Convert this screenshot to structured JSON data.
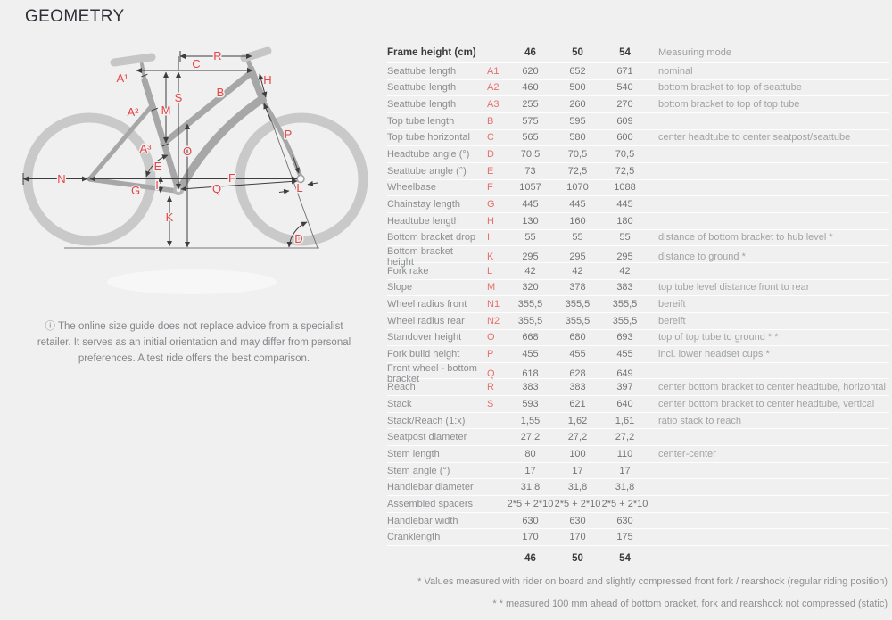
{
  "page": {
    "title": "GEOMETRY"
  },
  "colors": {
    "background": "#f0f0f0",
    "diagram_label_red": "#e64545",
    "table_letter_red": "#e4706c"
  },
  "diagram": {
    "info_icon": "ⓘ",
    "note": "The online size guide does not replace advice from a specialist retailer. It serves as an initial orientation and may differ from personal preferences. A test ride offers the best comparison.",
    "labels": {
      "a1": "A¹",
      "a2": "A²",
      "a3": "A³",
      "b": "B",
      "c": "C",
      "d": "D",
      "e": "E",
      "f": "F",
      "g": "G",
      "h": "H",
      "i": "I",
      "k": "K",
      "l": "L",
      "m": "M",
      "n": "N",
      "o": "O",
      "p": "P",
      "q": "Q",
      "r": "R",
      "s": "S"
    }
  },
  "table": {
    "header": {
      "label": "Frame height (cm)",
      "sizes": [
        "46",
        "50",
        "54"
      ],
      "measuring": "Measuring mode"
    },
    "rows": [
      {
        "label": "Seattube length",
        "letter": "A1",
        "values": [
          "620",
          "652",
          "671"
        ],
        "mode": "nominal"
      },
      {
        "label": "Seattube length",
        "letter": "A2",
        "values": [
          "460",
          "500",
          "540"
        ],
        "mode": "bottom bracket to top of seattube"
      },
      {
        "label": "Seattube length",
        "letter": "A3",
        "values": [
          "255",
          "260",
          "270"
        ],
        "mode": "bottom bracket to top of top tube"
      },
      {
        "label": "Top tube length",
        "letter": "B",
        "values": [
          "575",
          "595",
          "609"
        ],
        "mode": ""
      },
      {
        "label": "Top tube horizontal",
        "letter": "C",
        "values": [
          "565",
          "580",
          "600"
        ],
        "mode": "center headtube to center seatpost/seattube"
      },
      {
        "label": "Headtube angle (°)",
        "letter": "D",
        "values": [
          "70,5",
          "70,5",
          "70,5"
        ],
        "mode": ""
      },
      {
        "label": "Seattube angle (°)",
        "letter": "E",
        "values": [
          "73",
          "72,5",
          "72,5"
        ],
        "mode": ""
      },
      {
        "label": "Wheelbase",
        "letter": "F",
        "values": [
          "1057",
          "1070",
          "1088"
        ],
        "mode": ""
      },
      {
        "label": "Chainstay length",
        "letter": "G",
        "values": [
          "445",
          "445",
          "445"
        ],
        "mode": ""
      },
      {
        "label": "Headtube length",
        "letter": "H",
        "values": [
          "130",
          "160",
          "180"
        ],
        "mode": ""
      },
      {
        "label": "Bottom bracket drop",
        "letter": "I",
        "values": [
          "55",
          "55",
          "55"
        ],
        "mode": "distance of bottom bracket to hub level *"
      },
      {
        "label": "Bottom bracket height",
        "letter": "K",
        "values": [
          "295",
          "295",
          "295"
        ],
        "mode": "distance to ground *"
      },
      {
        "label": "Fork rake",
        "letter": "L",
        "values": [
          "42",
          "42",
          "42"
        ],
        "mode": ""
      },
      {
        "label": "Slope",
        "letter": "M",
        "values": [
          "320",
          "378",
          "383"
        ],
        "mode": "top tube level distance front to rear"
      },
      {
        "label": "Wheel radius front",
        "letter": "N1",
        "values": [
          "355,5",
          "355,5",
          "355,5"
        ],
        "mode": "bereift"
      },
      {
        "label": "Wheel radius rear",
        "letter": "N2",
        "values": [
          "355,5",
          "355,5",
          "355,5"
        ],
        "mode": "bereift"
      },
      {
        "label": "Standover height",
        "letter": "O",
        "values": [
          "668",
          "680",
          "693"
        ],
        "mode": "top of top tube to ground * *"
      },
      {
        "label": "Fork build height",
        "letter": "P",
        "values": [
          "455",
          "455",
          "455"
        ],
        "mode": "incl. lower headset cups *"
      },
      {
        "label": "Front wheel - bottom bracket",
        "letter": "Q",
        "values": [
          "618",
          "628",
          "649"
        ],
        "mode": ""
      },
      {
        "label": "Reach",
        "letter": "R",
        "values": [
          "383",
          "383",
          "397"
        ],
        "mode": "center bottom bracket to center headtube, horizontal"
      },
      {
        "label": "Stack",
        "letter": "S",
        "values": [
          "593",
          "621",
          "640"
        ],
        "mode": "center bottom bracket to center headtube, vertical"
      },
      {
        "label": "Stack/Reach (1:x)",
        "letter": "",
        "values": [
          "1,55",
          "1,62",
          "1,61"
        ],
        "mode": "ratio stack to reach"
      },
      {
        "label": "Seatpost diameter",
        "letter": "",
        "values": [
          "27,2",
          "27,2",
          "27,2"
        ],
        "mode": ""
      },
      {
        "label": "Stem length",
        "letter": "",
        "values": [
          "80",
          "100",
          "110"
        ],
        "mode": "center-center"
      },
      {
        "label": "Stem angle (°)",
        "letter": "",
        "values": [
          "17",
          "17",
          "17"
        ],
        "mode": ""
      },
      {
        "label": "Handlebar diameter",
        "letter": "",
        "values": [
          "31,8",
          "31,8",
          "31,8"
        ],
        "mode": ""
      },
      {
        "label": "Assembled spacers",
        "letter": "",
        "values": [
          "2*5 + 2*10",
          "2*5 + 2*10",
          "2*5 + 2*10"
        ],
        "mode": ""
      },
      {
        "label": "Handlebar width",
        "letter": "",
        "values": [
          "630",
          "630",
          "630"
        ],
        "mode": ""
      },
      {
        "label": "Cranklength",
        "letter": "",
        "values": [
          "170",
          "170",
          "175"
        ],
        "mode": ""
      }
    ],
    "footer_sizes": [
      "46",
      "50",
      "54"
    ]
  },
  "footnotes": [
    "* Values measured with rider on board and slightly compressed front fork / rearshock (regular riding position)",
    "* * measured 100 mm ahead of bottom bracket, fork and rearshock not compressed (static)"
  ]
}
